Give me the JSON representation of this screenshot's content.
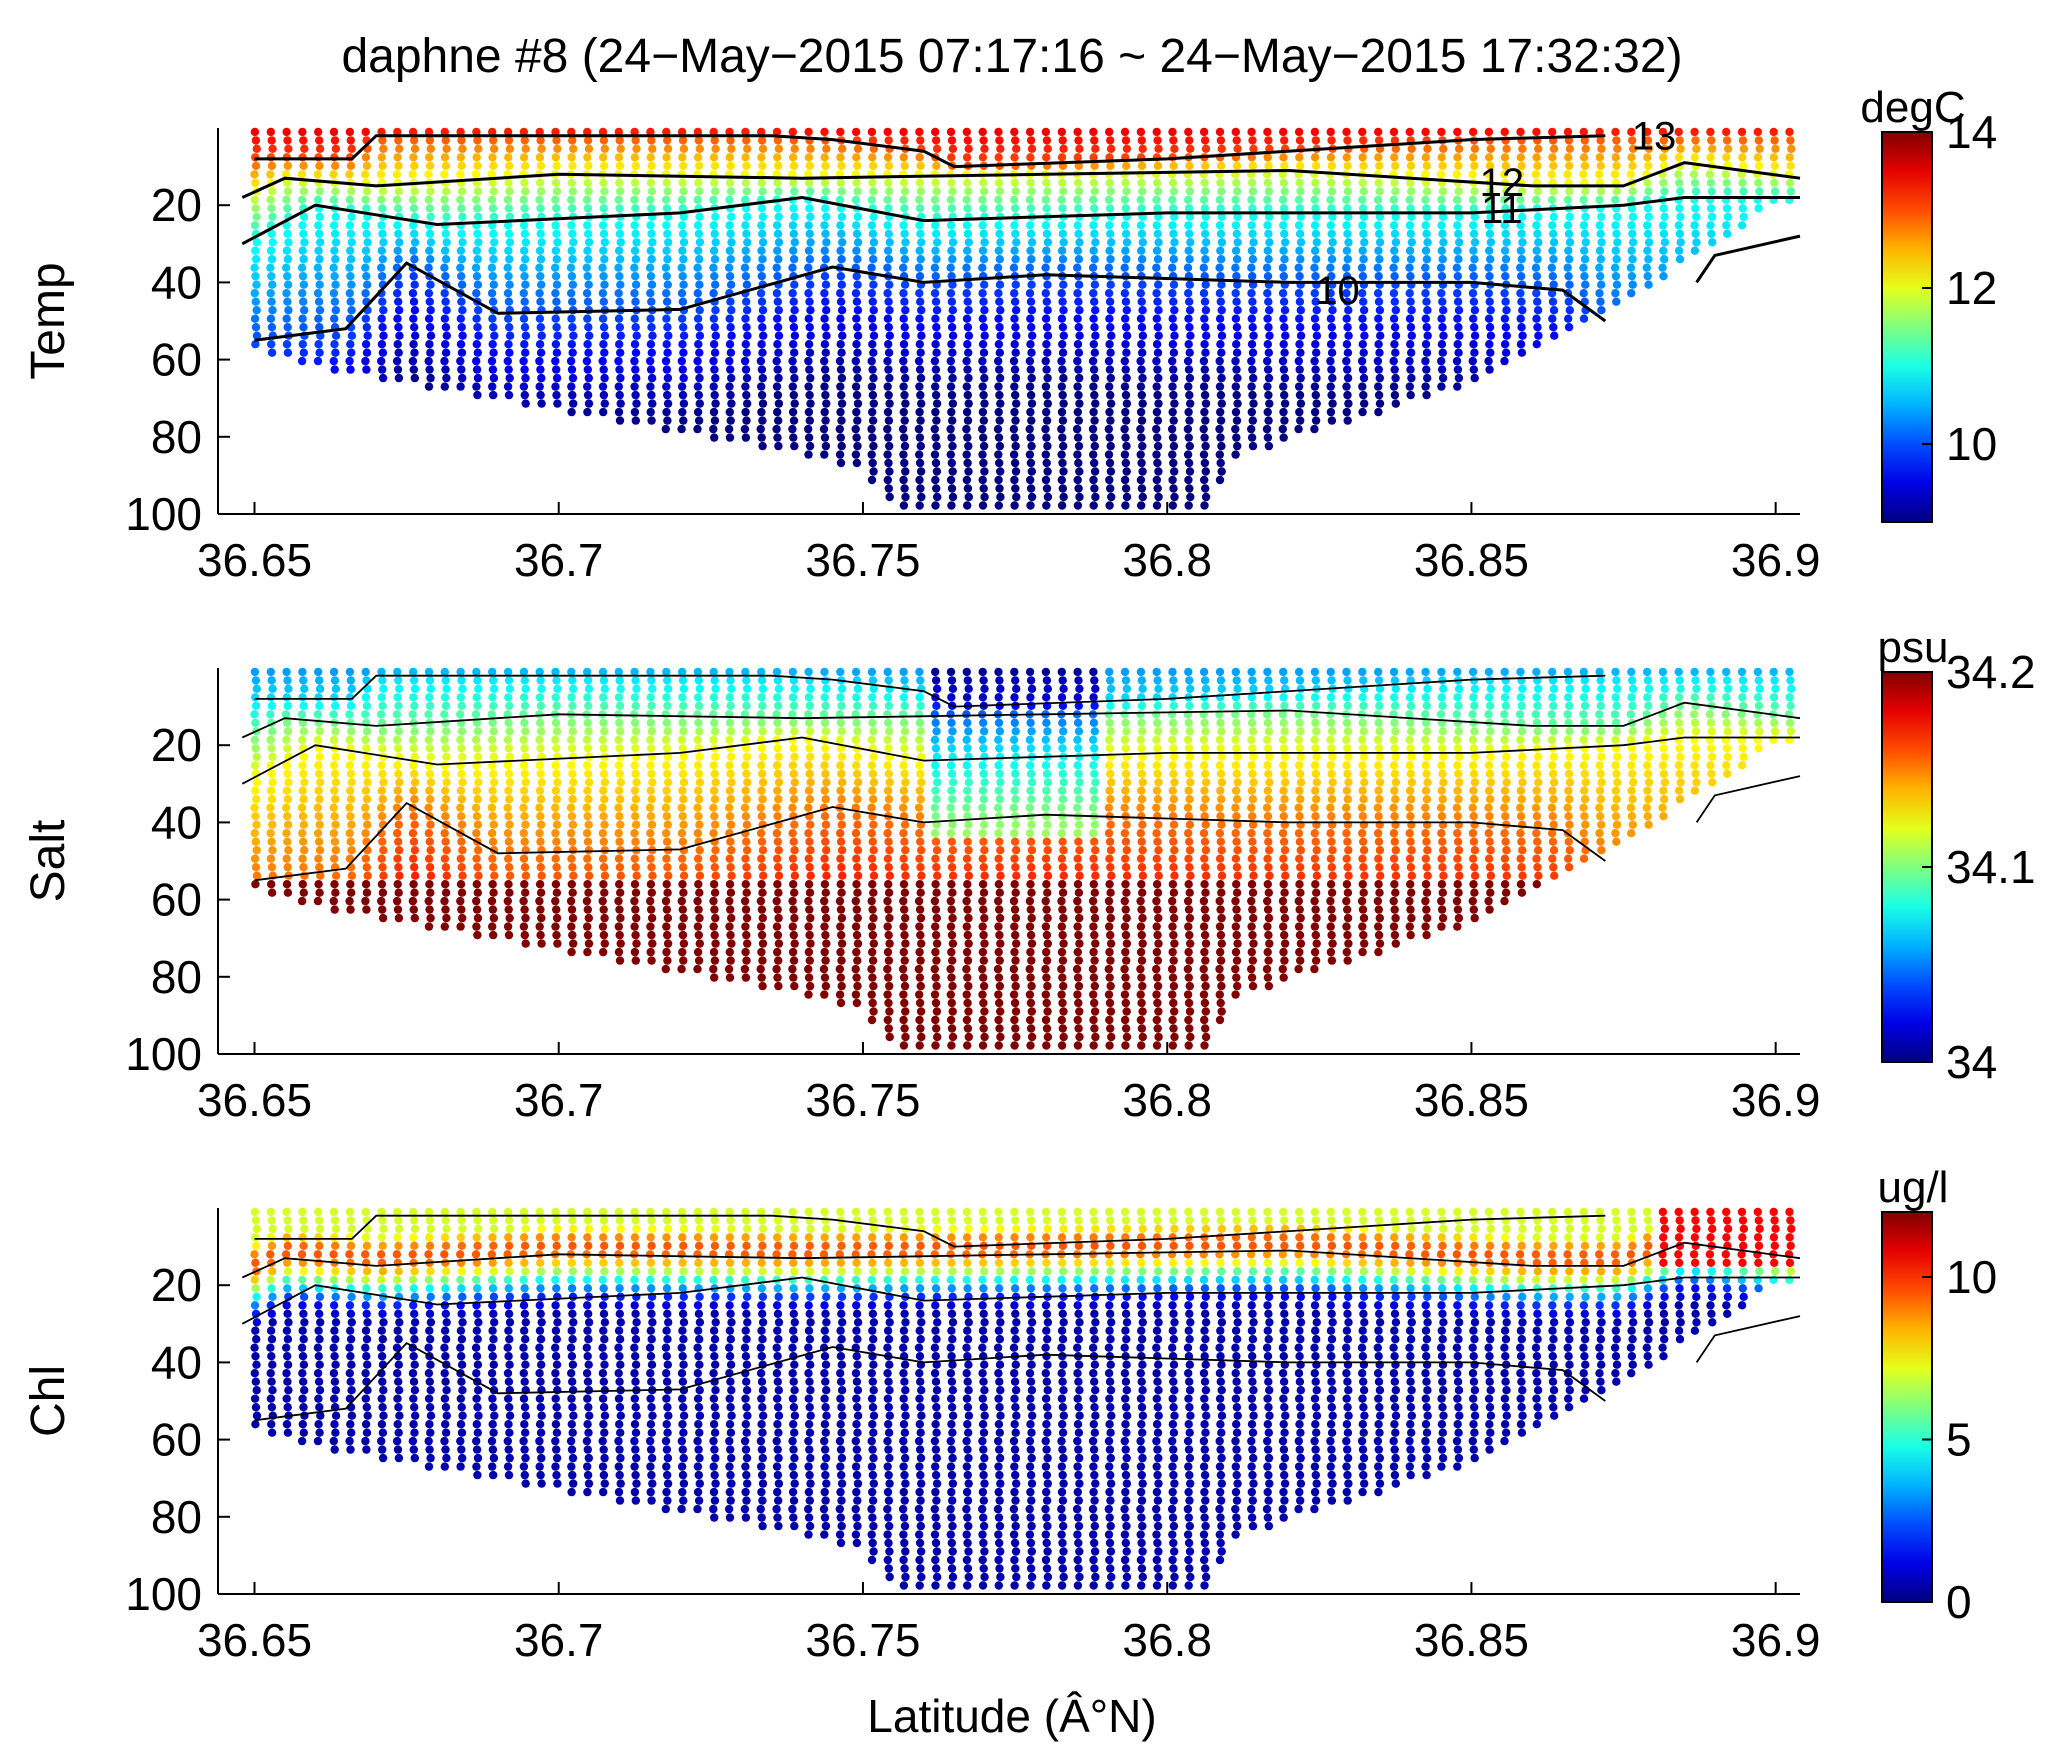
{
  "figure": {
    "title": "daphne #8 (24−May−2015 07:17:16 ~ 24−May−2015 17:32:32)",
    "xlabel": "Latitude (Â°N)"
  },
  "chart_data": [
    {
      "type": "scatter",
      "subtype": "glider-section",
      "ylabel": "Temp",
      "colorbar_label": "degC",
      "colorbar_ticks": [
        "10",
        "12",
        "14"
      ],
      "colorbar_range": [
        9,
        14
      ],
      "colormap": "jet",
      "xlim": [
        36.644,
        36.904
      ],
      "ylim": [
        100,
        0
      ],
      "y_reversed": true,
      "xticks": [
        "36.65",
        "36.7",
        "36.75",
        "36.8",
        "36.85",
        "36.9"
      ],
      "yticks": [
        "20",
        "40",
        "60",
        "80",
        "100"
      ],
      "contour_labels": [
        "13",
        "12",
        "11",
        "10"
      ]
    },
    {
      "type": "scatter",
      "subtype": "glider-section",
      "ylabel": "Salt",
      "colorbar_label": "psu",
      "colorbar_ticks": [
        "34",
        "34.1",
        "34.2"
      ],
      "colorbar_range": [
        34.0,
        34.2
      ],
      "colormap": "jet",
      "xlim": [
        36.644,
        36.904
      ],
      "ylim": [
        100,
        0
      ],
      "y_reversed": true,
      "xticks": [
        "36.65",
        "36.7",
        "36.75",
        "36.8",
        "36.85",
        "36.9"
      ],
      "yticks": [
        "20",
        "40",
        "60",
        "80",
        "100"
      ],
      "contour_labels": []
    },
    {
      "type": "scatter",
      "subtype": "glider-section",
      "ylabel": "Chl",
      "colorbar_label": "ug/l",
      "colorbar_ticks": [
        "0",
        "5",
        "10"
      ],
      "colorbar_range": [
        0,
        12
      ],
      "colormap": "jet",
      "xlim": [
        36.644,
        36.904
      ],
      "ylim": [
        100,
        0
      ],
      "y_reversed": true,
      "xticks": [
        "36.65",
        "36.7",
        "36.75",
        "36.8",
        "36.85",
        "36.9"
      ],
      "yticks": [
        "20",
        "40",
        "60",
        "80",
        "100"
      ],
      "contour_labels": []
    }
  ],
  "section": {
    "profile_lat_range": [
      36.65,
      36.904
    ],
    "bottom_depth_profile": [
      {
        "lat": 36.65,
        "depth": 57
      },
      {
        "lat": 36.66,
        "depth": 62
      },
      {
        "lat": 36.7,
        "depth": 73
      },
      {
        "lat": 36.75,
        "depth": 88
      },
      {
        "lat": 36.755,
        "depth": 100
      },
      {
        "lat": 36.807,
        "depth": 100
      },
      {
        "lat": 36.81,
        "depth": 86
      },
      {
        "lat": 36.85,
        "depth": 66
      },
      {
        "lat": 36.87,
        "depth": 50
      },
      {
        "lat": 36.88,
        "depth": 40
      },
      {
        "lat": 36.9,
        "depth": 20
      }
    ],
    "contours": [
      {
        "level": 13,
        "points": [
          [
            36.65,
            8
          ],
          [
            36.666,
            8
          ],
          [
            36.67,
            2
          ],
          [
            36.715,
            2
          ],
          [
            36.735,
            2
          ],
          [
            36.745,
            3
          ],
          [
            36.76,
            6
          ],
          [
            36.765,
            10
          ],
          [
            36.8,
            8
          ],
          [
            36.85,
            3
          ],
          [
            36.872,
            2
          ]
        ]
      },
      {
        "level": 12,
        "points": [
          [
            36.648,
            18
          ],
          [
            36.655,
            13
          ],
          [
            36.67,
            15
          ],
          [
            36.7,
            12
          ],
          [
            36.74,
            13
          ],
          [
            36.78,
            12
          ],
          [
            36.82,
            11
          ],
          [
            36.86,
            15
          ],
          [
            36.875,
            15
          ],
          [
            36.885,
            9
          ],
          [
            36.904,
            13
          ]
        ]
      },
      {
        "level": 11,
        "points": [
          [
            36.648,
            30
          ],
          [
            36.66,
            20
          ],
          [
            36.68,
            25
          ],
          [
            36.72,
            22
          ],
          [
            36.74,
            18
          ],
          [
            36.76,
            24
          ],
          [
            36.8,
            22
          ],
          [
            36.85,
            22
          ],
          [
            36.875,
            20
          ],
          [
            36.885,
            18
          ],
          [
            36.904,
            18
          ]
        ]
      },
      {
        "level": 10,
        "points": [
          [
            36.65,
            55
          ],
          [
            36.665,
            52
          ],
          [
            36.675,
            35
          ],
          [
            36.69,
            48
          ],
          [
            36.72,
            47
          ],
          [
            36.745,
            36
          ],
          [
            36.76,
            40
          ],
          [
            36.78,
            38
          ],
          [
            36.82,
            40
          ],
          [
            36.85,
            40
          ],
          [
            36.865,
            42
          ],
          [
            36.872,
            50
          ]
        ]
      },
      {
        "level": 10,
        "points": [
          [
            36.887,
            40
          ],
          [
            36.89,
            33
          ],
          [
            36.904,
            28
          ]
        ]
      }
    ]
  }
}
